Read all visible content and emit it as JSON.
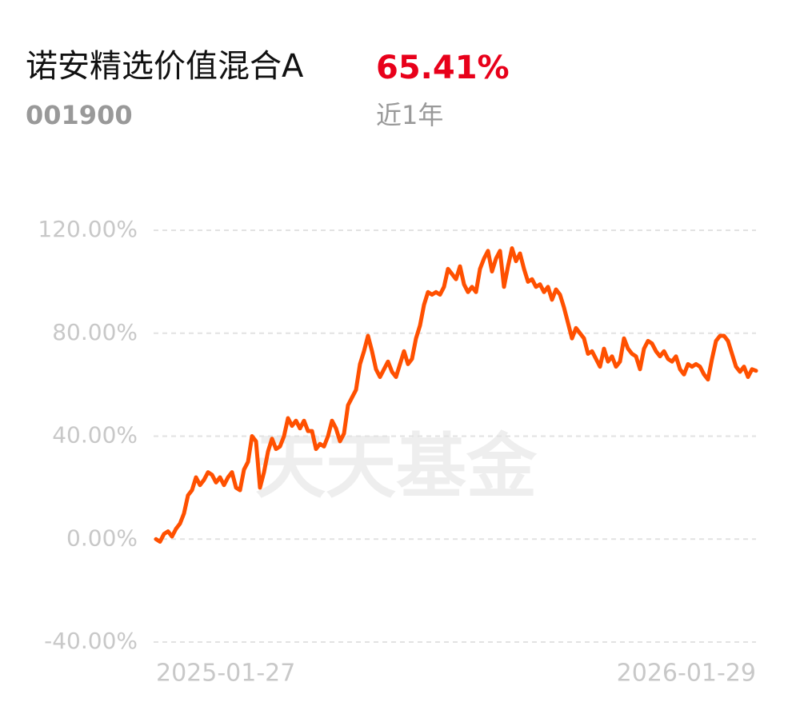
{
  "chart_data": {
    "type": "line",
    "title": "诺安精选价值混合A",
    "subtitle": "001900",
    "annotations": [
      "65.41%",
      "近1年",
      "天天基金"
    ],
    "categories": [
      "2025-01-27",
      null,
      null,
      null,
      null,
      null,
      null,
      null,
      null,
      null,
      null,
      null,
      null,
      null,
      null,
      null,
      null,
      null,
      null,
      null,
      null,
      null,
      null,
      null,
      null,
      null,
      null,
      null,
      null,
      null,
      null,
      null,
      null,
      null,
      null,
      null,
      null,
      null,
      null,
      null,
      null,
      null,
      null,
      null,
      null,
      null,
      null,
      null,
      null,
      null,
      null,
      null,
      null,
      null,
      null,
      null,
      null,
      null,
      null,
      null,
      null,
      null,
      null,
      null,
      null,
      null,
      null,
      null,
      null,
      null,
      null,
      null,
      null,
      null,
      null,
      null,
      null,
      null,
      null,
      null,
      null,
      null,
      null,
      null,
      null,
      null,
      null,
      null,
      null,
      null,
      null,
      null,
      null,
      null,
      null,
      null,
      null,
      null,
      null,
      null,
      null,
      null,
      null,
      null,
      null,
      null,
      null,
      null,
      null,
      null,
      null,
      null,
      null,
      null,
      null,
      null,
      null,
      null,
      null,
      null,
      null,
      null,
      null,
      null,
      null,
      null,
      null,
      null,
      null,
      null,
      null,
      null,
      null,
      null,
      null,
      null,
      null,
      null,
      null,
      null,
      null,
      null,
      null,
      null,
      null,
      null,
      null,
      null,
      null,
      null,
      "2026-01-29"
    ],
    "series": [
      {
        "name": "诺安精选价值混合A",
        "color": "#ff5000",
        "values": [
          0,
          -1,
          2,
          3,
          1,
          4,
          6,
          10,
          17,
          19,
          24,
          21,
          23,
          26,
          25,
          22,
          24,
          21,
          24,
          26,
          20,
          19,
          27,
          30,
          40,
          38,
          20,
          26,
          34,
          39,
          35,
          36,
          40,
          47,
          44,
          46,
          43,
          46,
          42,
          42,
          35,
          37,
          36,
          40,
          46,
          43,
          38,
          41,
          52,
          55,
          58,
          68,
          73,
          79,
          73,
          66,
          63,
          66,
          69,
          65,
          63,
          68,
          73,
          68,
          70,
          78,
          83,
          91,
          96,
          95,
          96,
          95,
          98,
          105,
          103,
          101,
          106,
          99,
          96,
          98,
          96,
          105,
          109,
          112,
          104,
          109,
          112,
          98,
          106,
          113,
          108,
          111,
          105,
          100,
          101,
          98,
          99,
          96,
          98,
          93,
          97,
          95,
          90,
          84,
          78,
          82,
          80,
          78,
          72,
          73,
          70,
          67,
          74,
          69,
          71,
          67,
          69,
          78,
          74,
          72,
          71,
          66,
          74,
          77,
          76,
          73,
          71,
          73,
          70,
          69,
          71,
          66,
          64,
          68,
          67,
          68,
          67,
          64,
          62,
          70,
          77,
          79,
          79,
          77,
          72,
          67,
          65,
          67,
          63,
          66,
          65.41
        ]
      }
    ],
    "ylim": [
      -40,
      120
    ],
    "yticks": [
      {
        "value": -40,
        "label": "-40.00%"
      },
      {
        "value": 0,
        "label": "0.00%"
      },
      {
        "value": 40,
        "label": "40.00%"
      },
      {
        "value": 80,
        "label": "80.00%"
      },
      {
        "value": 120,
        "label": "120.00%"
      }
    ],
    "grid": true
  }
}
